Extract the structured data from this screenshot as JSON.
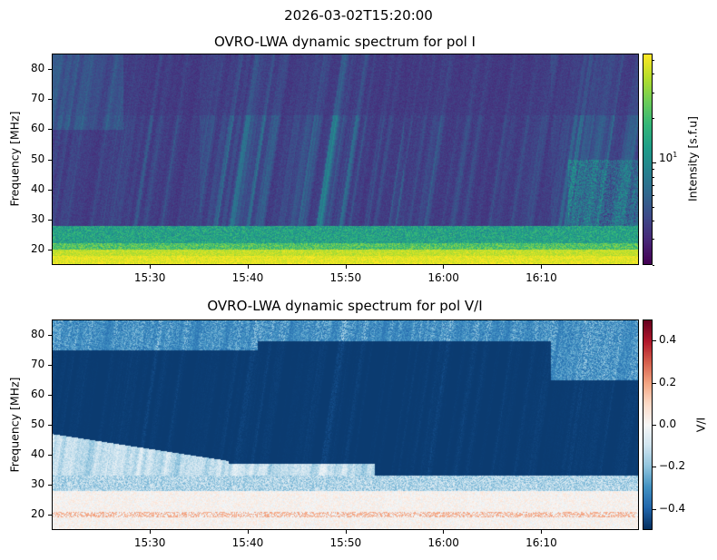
{
  "suptitle": "2026-03-02T15:20:00",
  "chart_data": [
    {
      "type": "heatmap",
      "title": "OVRO-LWA dynamic spectrum for pol I",
      "xlabel": "",
      "ylabel": "Frequency [MHz]",
      "xlim": [
        "15:20",
        "16:20"
      ],
      "ylim": [
        15,
        85
      ],
      "xticks": [
        "15:30",
        "15:40",
        "15:50",
        "16:00",
        "16:10"
      ],
      "yticks": [
        20,
        30,
        40,
        50,
        60,
        70,
        80
      ],
      "colorbar": {
        "label": "Intensity [s.f.u]",
        "scale": "log",
        "range": [
          2,
          55
        ],
        "major_tick_label": "10",
        "major_tick_exp": "1",
        "colormap": "viridis"
      }
    },
    {
      "type": "heatmap",
      "title": "OVRO-LWA dynamic spectrum for pol V/I",
      "xlabel": "",
      "ylabel": "Frequency [MHz]",
      "xlim": [
        "15:20",
        "16:20"
      ],
      "ylim": [
        15,
        85
      ],
      "xticks": [
        "15:30",
        "15:40",
        "15:50",
        "16:00",
        "16:10"
      ],
      "yticks": [
        20,
        30,
        40,
        50,
        60,
        70,
        80
      ],
      "colorbar": {
        "label": "V/I",
        "scale": "linear",
        "range": [
          -0.5,
          0.5
        ],
        "ticks": [
          "0.4",
          "0.2",
          "0.0",
          "−0.2",
          "−0.4"
        ],
        "tick_values": [
          0.4,
          0.2,
          0.0,
          -0.2,
          -0.4
        ],
        "colormap": "RdBu_r"
      }
    }
  ]
}
